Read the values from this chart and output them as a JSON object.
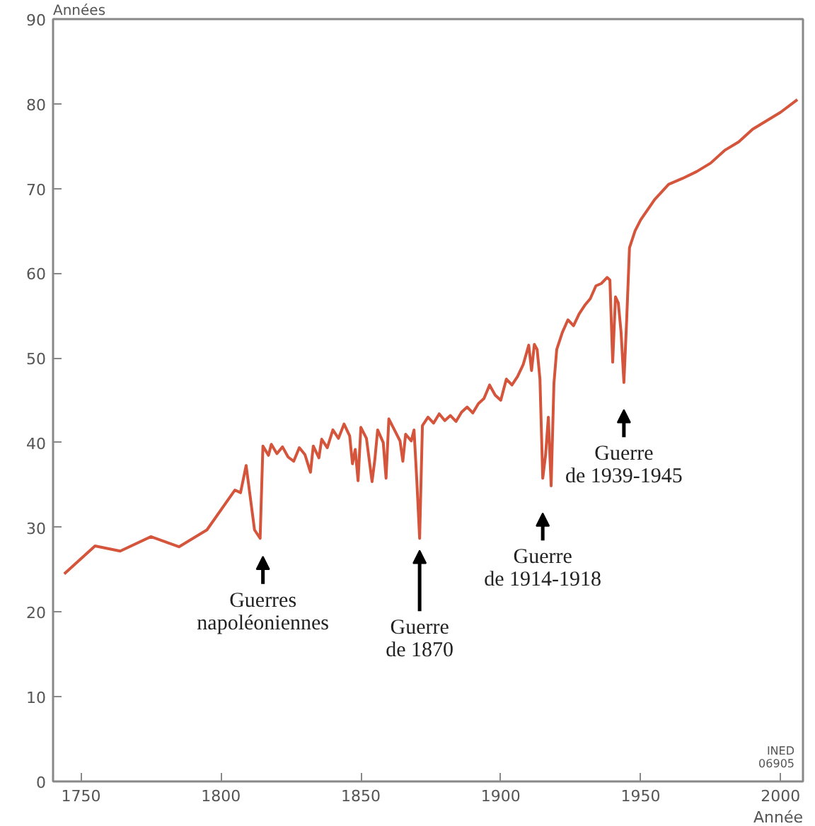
{
  "chart_data": {
    "type": "line",
    "xlabel": "Année",
    "ylabel": "Années",
    "xlim": [
      1740,
      2008
    ],
    "ylim": [
      0,
      90
    ],
    "xticks": [
      1750,
      1800,
      1850,
      1900,
      1950,
      2000
    ],
    "yticks": [
      0,
      10,
      20,
      30,
      40,
      50,
      60,
      70,
      80,
      90
    ],
    "grid": false,
    "marker": "none",
    "line_style": "solid",
    "series": [
      {
        "color": "#d4553b",
        "x": [
          1744,
          1755,
          1764,
          1775,
          1785,
          1795,
          1805,
          1807,
          1809,
          1812,
          1814,
          1815,
          1817,
          1818,
          1820,
          1822,
          1824,
          1826,
          1828,
          1830,
          1832,
          1833,
          1835,
          1836,
          1838,
          1840,
          1842,
          1844,
          1846,
          1847,
          1848,
          1849,
          1850,
          1852,
          1854,
          1855,
          1856,
          1858,
          1859,
          1860,
          1862,
          1864,
          1865,
          1866,
          1868,
          1869,
          1870,
          1871,
          1872,
          1874,
          1876,
          1878,
          1880,
          1882,
          1884,
          1886,
          1888,
          1890,
          1892,
          1894,
          1896,
          1898,
          1900,
          1902,
          1904,
          1906,
          1908,
          1910,
          1911,
          1912,
          1913,
          1914,
          1915,
          1916,
          1917,
          1918,
          1919,
          1920,
          1922,
          1924,
          1926,
          1928,
          1930,
          1932,
          1934,
          1936,
          1938,
          1939,
          1940,
          1941,
          1942,
          1943,
          1944,
          1945,
          1946,
          1948,
          1950,
          1955,
          1960,
          1965,
          1970,
          1975,
          1980,
          1985,
          1990,
          1995,
          2000,
          2006
        ],
        "values": [
          24.5,
          27.8,
          27.2,
          28.9,
          27.7,
          29.7,
          34.4,
          34.1,
          37.3,
          29.7,
          28.7,
          39.6,
          38.5,
          39.8,
          38.7,
          39.5,
          38.3,
          37.8,
          39.4,
          38.6,
          36.5,
          39.6,
          38.2,
          40.4,
          39.4,
          41.5,
          40.5,
          42.2,
          40.8,
          37.5,
          39.2,
          35.5,
          41.8,
          40.5,
          35.4,
          38.0,
          41.5,
          40.0,
          35.8,
          42.8,
          41.5,
          40.2,
          37.8,
          41.0,
          40.2,
          41.5,
          35.5,
          28.7,
          42.0,
          43.0,
          42.3,
          43.4,
          42.6,
          43.2,
          42.5,
          43.6,
          44.2,
          43.5,
          44.6,
          45.2,
          46.8,
          45.6,
          45.0,
          47.5,
          46.8,
          47.8,
          49.2,
          51.5,
          48.5,
          51.6,
          51.0,
          47.5,
          35.8,
          38.5,
          43.0,
          34.9,
          47.0,
          51.0,
          53.0,
          54.5,
          53.8,
          55.2,
          56.2,
          57.0,
          58.5,
          58.8,
          59.5,
          59.2,
          49.5,
          57.2,
          56.5,
          53.0,
          47.1,
          54.5,
          63.0,
          65.0,
          66.3,
          68.7,
          70.5,
          71.2,
          72.0,
          73.0,
          74.5,
          75.5,
          77.0,
          78.0,
          79.0,
          80.5
        ]
      }
    ],
    "annotations": [
      {
        "text": "Guerres\nnapoléoniennes",
        "x": 1815,
        "y": 28.7
      },
      {
        "text": "Guerre\nde 1870",
        "x": 1871,
        "y": 28.7
      },
      {
        "text": "Guerre\nde 1914-1918",
        "x": 1915,
        "y": 34.9
      },
      {
        "text": "Guerre\nde 1939-1945",
        "x": 1944,
        "y": 47.1
      },
      "INED\n06905"
    ]
  }
}
